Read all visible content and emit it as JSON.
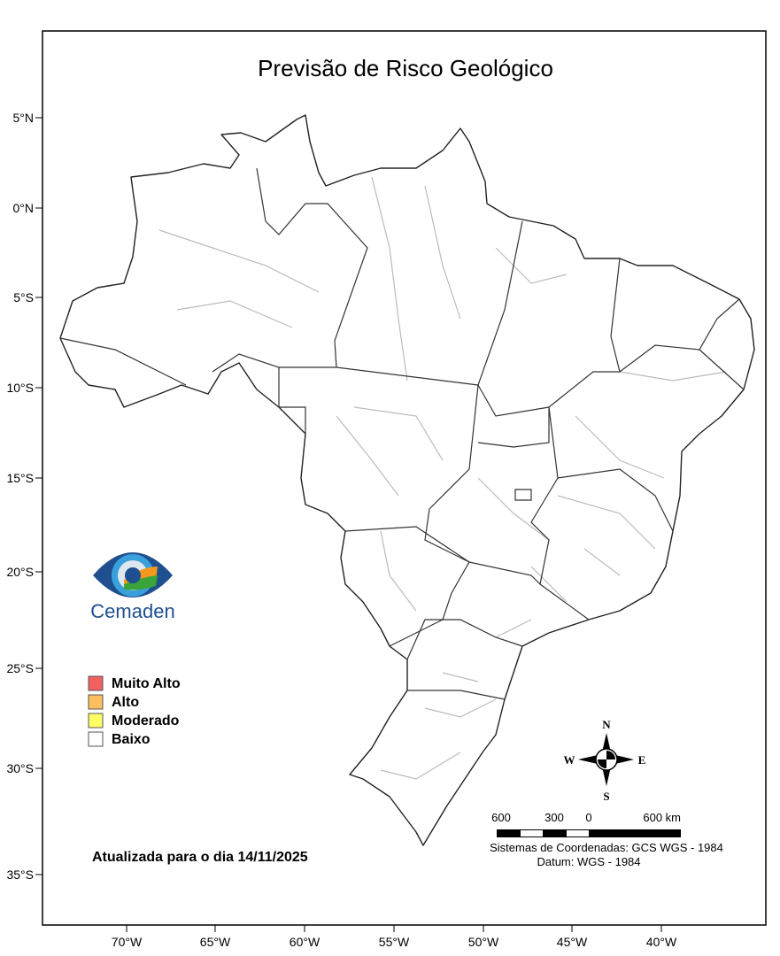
{
  "title": "Previsão de Risco Geológico",
  "lat_labels": [
    "5°N",
    "0°N",
    "5°S",
    "10°S",
    "15°S",
    "20°S",
    "25°S",
    "30°S",
    "35°S"
  ],
  "lon_labels": [
    "70°W",
    "65°W",
    "60°W",
    "55°W",
    "50°W",
    "45°W",
    "40°W"
  ],
  "logo": {
    "text": "Cemaden",
    "colors": {
      "blue": "#1f4f8f",
      "light_blue": "#3aa0dc",
      "green": "#3aa33a",
      "orange": "#f39a1e"
    }
  },
  "legend": {
    "items": [
      {
        "label": "Muito Alto",
        "color": "#f26060"
      },
      {
        "label": "Alto",
        "color": "#fcbe5e"
      },
      {
        "label": "Moderado",
        "color": "#ffff66"
      },
      {
        "label": "Baixo",
        "color": "#ffffff"
      }
    ]
  },
  "updated_text": "Atualizada para o dia 14/11/2025",
  "compass": {
    "n": "N",
    "s": "S",
    "e": "E",
    "w": "W"
  },
  "scale_bar": {
    "labels": [
      "600",
      "300",
      "0",
      "600 km"
    ]
  },
  "coordinate_system": "Sistemas de Coordenadas: GCS WGS - 1984",
  "datum": "Datum: WGS - 1984"
}
